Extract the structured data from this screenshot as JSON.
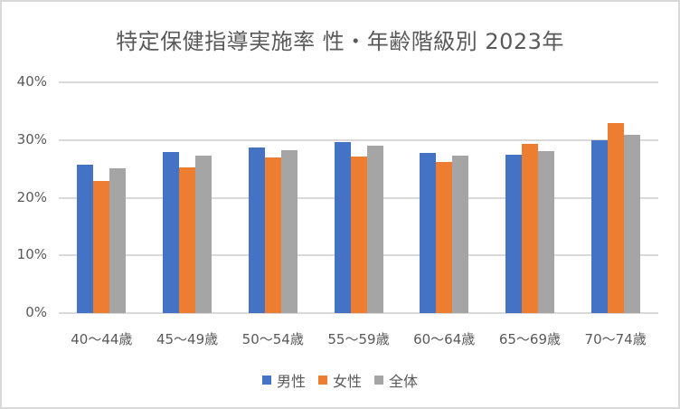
{
  "chart_data": {
    "type": "bar",
    "title": "特定保健指導実施率 性・年齢階級別 2023年",
    "xlabel": "",
    "ylabel": "",
    "ylim": [
      0,
      0.4
    ],
    "yticks": [
      "0%",
      "10%",
      "20%",
      "30%",
      "40%"
    ],
    "grid": true,
    "legend_position": "bottom",
    "categories": [
      "40〜44歳",
      "45〜49歳",
      "50〜54歳",
      "55〜59歳",
      "60〜64歳",
      "65〜69歳",
      "70〜74歳"
    ],
    "series": [
      {
        "name": "男性",
        "color": "#4472C4",
        "values": [
          25.7,
          27.9,
          28.7,
          29.6,
          27.8,
          27.5,
          29.9
        ]
      },
      {
        "name": "女性",
        "color": "#ED7D31",
        "values": [
          22.9,
          25.3,
          27.0,
          27.1,
          26.2,
          29.3,
          33.0
        ]
      },
      {
        "name": "全体",
        "color": "#A5A5A5",
        "values": [
          25.1,
          27.3,
          28.2,
          29.0,
          27.3,
          28.1,
          30.9
        ]
      }
    ]
  }
}
